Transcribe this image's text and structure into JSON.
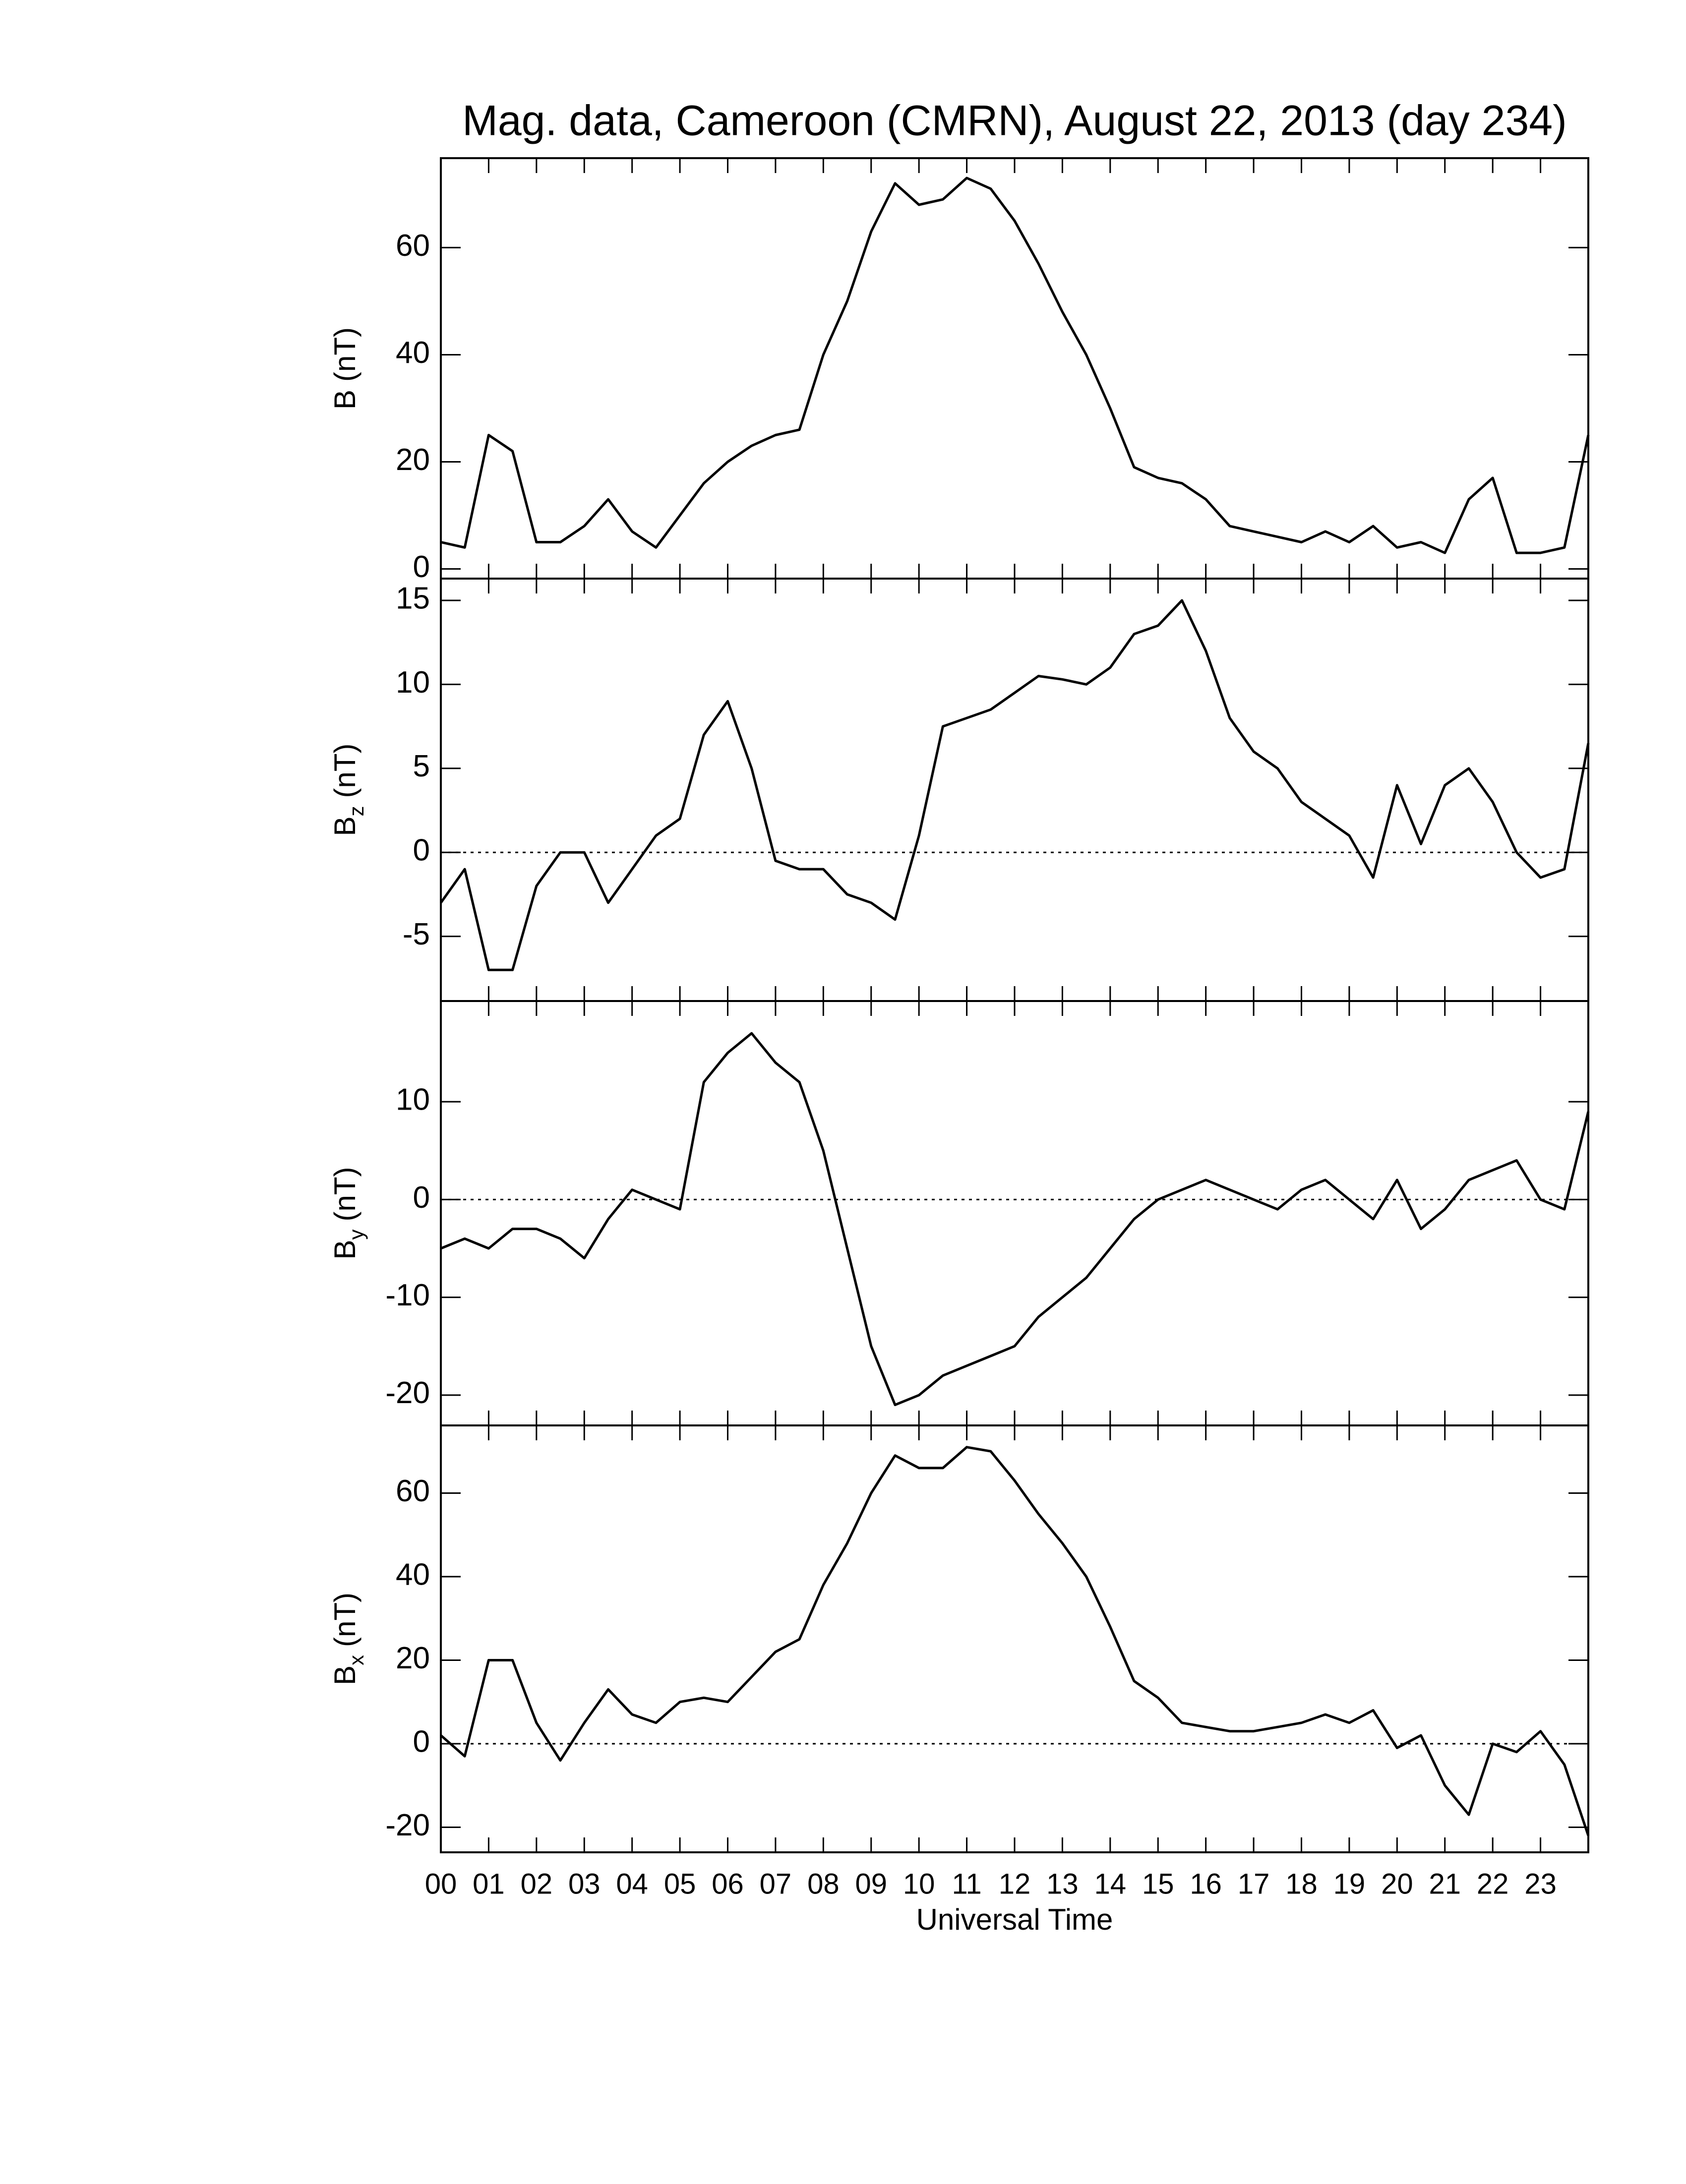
{
  "chart_data": [
    {
      "type": "line",
      "title": "Mag. data, Cameroon (CMRN), August 22, 2013 (day 234)",
      "ylabel": "B",
      "ylabel_unit": "(nT)",
      "zero_line": false,
      "color": "#000000",
      "xlim": [
        0,
        24
      ],
      "xticks": [
        0,
        1,
        2,
        3,
        4,
        5,
        6,
        7,
        8,
        9,
        10,
        11,
        12,
        13,
        14,
        15,
        16,
        17,
        18,
        19,
        20,
        21,
        22,
        23
      ],
      "ylim": [
        -1.8,
        76.7
      ],
      "yticks": [
        0,
        20,
        40,
        60
      ],
      "x": [
        0,
        0.5,
        1,
        1.5,
        2,
        2.5,
        3,
        3.5,
        4,
        4.5,
        5,
        5.5,
        6,
        6.5,
        7,
        7.5,
        8,
        8.5,
        9,
        9.5,
        10,
        10.5,
        11,
        11.5,
        12,
        12.5,
        13,
        13.5,
        14,
        14.5,
        15,
        15.5,
        16,
        16.5,
        17,
        17.5,
        18,
        18.5,
        19,
        19.5,
        20,
        20.5,
        21,
        21.5,
        22,
        22.5,
        23,
        23.5,
        24
      ],
      "values": [
        5,
        4,
        25,
        22,
        5,
        5,
        8,
        13,
        7,
        4,
        10,
        16,
        20,
        23,
        25,
        26,
        40,
        50,
        63,
        72,
        68,
        69,
        73,
        71,
        65,
        57,
        48,
        40,
        30,
        19,
        17,
        16,
        13,
        8,
        7,
        6,
        5,
        7,
        5,
        8,
        4,
        5,
        3,
        13,
        17,
        3,
        3,
        4,
        25
      ]
    },
    {
      "type": "line",
      "ylabel": "B",
      "ylabel_sub": "z",
      "ylabel_unit": "(nT)",
      "zero_line": true,
      "color": "#000000",
      "xlim": [
        0,
        24
      ],
      "xticks": [
        0,
        1,
        2,
        3,
        4,
        5,
        6,
        7,
        8,
        9,
        10,
        11,
        12,
        13,
        14,
        15,
        16,
        17,
        18,
        19,
        20,
        21,
        22,
        23
      ],
      "ylim": [
        -8.85,
        16.3
      ],
      "yticks": [
        -5,
        0,
        5,
        10,
        15
      ],
      "x": [
        0,
        0.5,
        1,
        1.5,
        2,
        2.5,
        3,
        3.5,
        4,
        4.5,
        5,
        5.5,
        6,
        6.5,
        7,
        7.5,
        8,
        8.5,
        9,
        9.5,
        10,
        10.5,
        11,
        11.5,
        12,
        12.5,
        13,
        13.5,
        14,
        14.5,
        15,
        15.5,
        16,
        16.5,
        17,
        17.5,
        18,
        18.5,
        19,
        19.5,
        20,
        20.5,
        21,
        21.5,
        22,
        22.5,
        23,
        23.5,
        24
      ],
      "values": [
        -3,
        -1,
        -7,
        -7,
        -2,
        0,
        0,
        -3,
        -1,
        1,
        2,
        7,
        9,
        5,
        -0.5,
        -1,
        -1,
        -2.5,
        -3,
        -4,
        1,
        7.5,
        8,
        8.5,
        9.5,
        10.5,
        10.3,
        10,
        11,
        13,
        13.5,
        15,
        12,
        8,
        6,
        5,
        3,
        2,
        1,
        -1.5,
        4,
        0.5,
        4,
        5,
        3,
        0,
        -1.5,
        -1,
        6.5
      ]
    },
    {
      "type": "line",
      "ylabel": "B",
      "ylabel_sub": "y",
      "ylabel_unit": "(nT)",
      "zero_line": true,
      "color": "#000000",
      "xlim": [
        0,
        24
      ],
      "xticks": [
        0,
        1,
        2,
        3,
        4,
        5,
        6,
        7,
        8,
        9,
        10,
        11,
        12,
        13,
        14,
        15,
        16,
        17,
        18,
        19,
        20,
        21,
        22,
        23
      ],
      "ylim": [
        -23.1,
        20.3
      ],
      "yticks": [
        -20,
        -10,
        0,
        10
      ],
      "x": [
        0,
        0.5,
        1,
        1.5,
        2,
        2.5,
        3,
        3.5,
        4,
        4.5,
        5,
        5.5,
        6,
        6.5,
        7,
        7.5,
        8,
        8.5,
        9,
        9.5,
        10,
        10.5,
        11,
        11.5,
        12,
        12.5,
        13,
        13.5,
        14,
        14.5,
        15,
        15.5,
        16,
        16.5,
        17,
        17.5,
        18,
        18.5,
        19,
        19.5,
        20,
        20.5,
        21,
        21.5,
        22,
        22.5,
        23,
        23.5,
        24
      ],
      "values": [
        -5,
        -4,
        -5,
        -3,
        -3,
        -4,
        -6,
        -2,
        1,
        0,
        -1,
        12,
        15,
        17,
        14,
        12,
        5,
        -5,
        -15,
        -21,
        -20,
        -18,
        -17,
        -16,
        -15,
        -12,
        -10,
        -8,
        -5,
        -2,
        0,
        1,
        2,
        1,
        0,
        -1,
        1,
        2,
        0,
        -2,
        2,
        -3,
        -1,
        2,
        3,
        4,
        0,
        -1,
        9
      ]
    },
    {
      "type": "line",
      "ylabel": "B",
      "ylabel_sub": "x",
      "ylabel_unit": "(nT)",
      "zero_line": true,
      "color": "#000000",
      "xlabel": "Universal Time",
      "xlim": [
        0,
        24
      ],
      "xticks": [
        {
          "value": 0,
          "label": "00"
        },
        {
          "value": 1,
          "label": "01"
        },
        {
          "value": 2,
          "label": "02"
        },
        {
          "value": 3,
          "label": "03"
        },
        {
          "value": 4,
          "label": "04"
        },
        {
          "value": 5,
          "label": "05"
        },
        {
          "value": 6,
          "label": "06"
        },
        {
          "value": 7,
          "label": "07"
        },
        {
          "value": 8,
          "label": "08"
        },
        {
          "value": 9,
          "label": "09"
        },
        {
          "value": 10,
          "label": "10"
        },
        {
          "value": 11,
          "label": "11"
        },
        {
          "value": 12,
          "label": "12"
        },
        {
          "value": 13,
          "label": "13"
        },
        {
          "value": 14,
          "label": "14"
        },
        {
          "value": 15,
          "label": "15"
        },
        {
          "value": 16,
          "label": "16"
        },
        {
          "value": 17,
          "label": "17"
        },
        {
          "value": 18,
          "label": "18"
        },
        {
          "value": 19,
          "label": "19"
        },
        {
          "value": 20,
          "label": "20"
        },
        {
          "value": 21,
          "label": "21"
        },
        {
          "value": 22,
          "label": "22"
        },
        {
          "value": 23,
          "label": "23"
        }
      ],
      "ylim": [
        -26,
        76.2
      ],
      "yticks": [
        -20,
        0,
        20,
        40,
        60
      ],
      "x": [
        0,
        0.5,
        1,
        1.5,
        2,
        2.5,
        3,
        3.5,
        4,
        4.5,
        5,
        5.5,
        6,
        6.5,
        7,
        7.5,
        8,
        8.5,
        9,
        9.5,
        10,
        10.5,
        11,
        11.5,
        12,
        12.5,
        13,
        13.5,
        14,
        14.5,
        15,
        15.5,
        16,
        16.5,
        17,
        17.5,
        18,
        18.5,
        19,
        19.5,
        20,
        20.5,
        21,
        21.5,
        22,
        22.5,
        23,
        23.5,
        24
      ],
      "values": [
        2,
        -3,
        20,
        20,
        5,
        -4,
        5,
        13,
        7,
        5,
        10,
        11,
        10,
        16,
        22,
        25,
        38,
        48,
        60,
        69,
        66,
        66,
        71,
        70,
        63,
        55,
        48,
        40,
        28,
        15,
        11,
        5,
        4,
        3,
        3,
        4,
        5,
        7,
        5,
        8,
        -1,
        2,
        -10,
        -17,
        0,
        -2,
        3,
        -5,
        -22
      ]
    }
  ]
}
